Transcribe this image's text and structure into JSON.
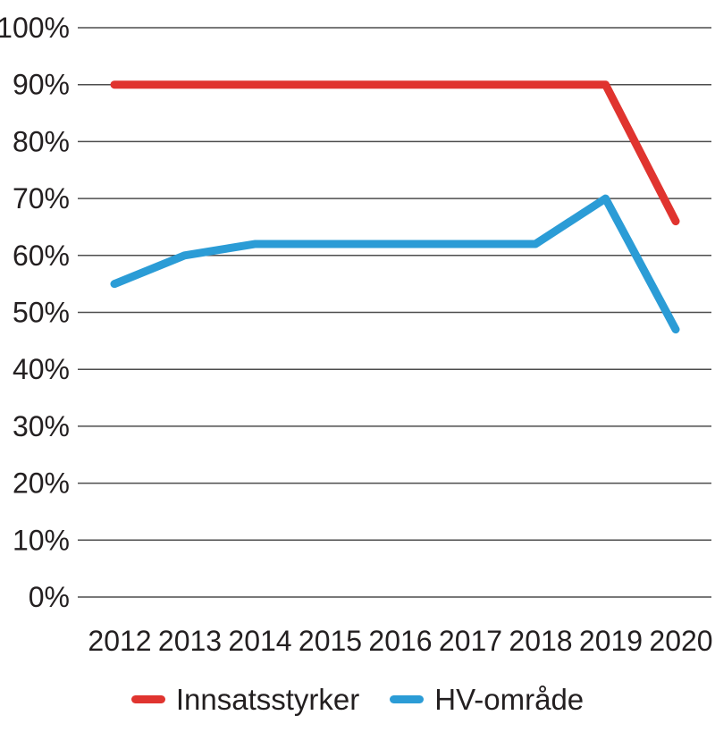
{
  "chart_data": {
    "type": "line",
    "x_labels": [
      "2012",
      "2013",
      "2014",
      "2015",
      "2016",
      "2017",
      "2018",
      "2019",
      "2020"
    ],
    "series": [
      {
        "name": "Innsatsstyrker",
        "color": "#e0342f",
        "values": [
          90,
          90,
          90,
          90,
          90,
          90,
          90,
          90,
          66
        ]
      },
      {
        "name": "HV-område",
        "color": "#2b9cd6",
        "values": [
          55,
          60,
          62,
          62,
          62,
          62,
          62,
          70,
          47
        ]
      }
    ],
    "title": "",
    "xlabel": "",
    "ylabel": "",
    "ylim": [
      0,
      100
    ],
    "ytick_step": 10,
    "ytick_labels": [
      "0%",
      "10%",
      "20%",
      "30%",
      "40%",
      "50%",
      "60%",
      "70%",
      "80%",
      "90%",
      "100%"
    ],
    "grid": "horizontal",
    "legend_position": "bottom"
  },
  "colors": {
    "text": "#231f20",
    "gridline": "#4d4d4d",
    "background": "#ffffff"
  }
}
